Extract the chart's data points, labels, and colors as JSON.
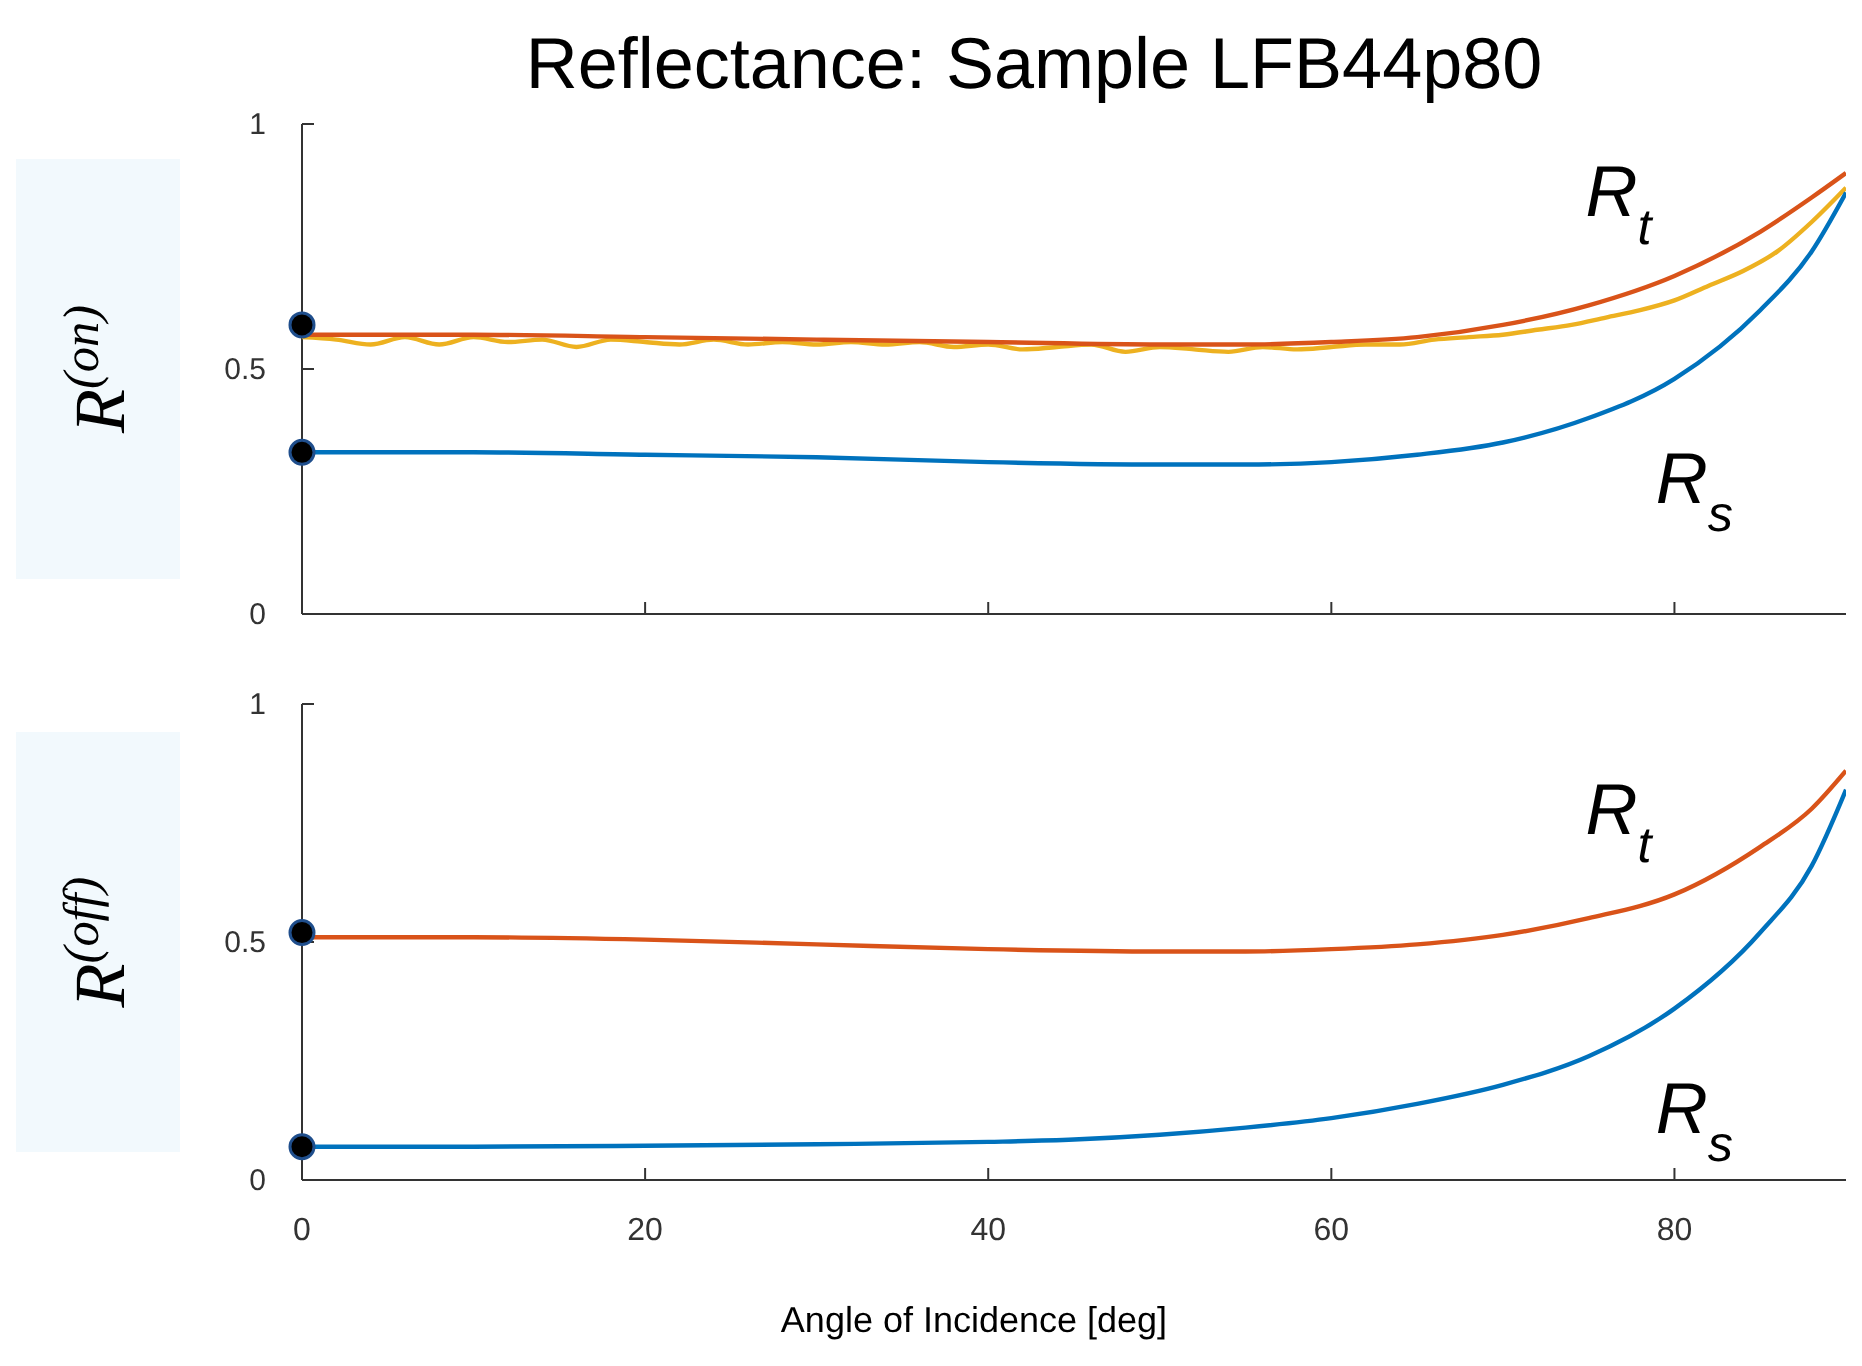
{
  "chart_data": [
    {
      "type": "line",
      "title": "Reflectance: Sample LFB44p80",
      "ylabel": "R$^{(on)}$",
      "xlim": [
        0,
        90
      ],
      "ylim": [
        0,
        1
      ],
      "xticks": [
        0,
        20,
        40,
        60,
        80
      ],
      "yticks": [
        0,
        0.5,
        1
      ],
      "tick_labels": "y",
      "series": [
        {
          "color": "#edb120",
          "x": [
            0,
            2,
            4,
            6,
            8,
            10,
            12,
            14,
            16,
            18,
            20,
            22,
            24,
            26,
            28,
            30,
            32,
            34,
            36,
            38,
            40,
            42,
            44,
            46,
            48,
            50,
            52,
            54,
            56,
            58,
            60,
            62,
            64,
            66,
            68,
            70,
            72,
            74,
            76,
            78,
            80,
            82,
            84,
            86,
            88,
            90
          ],
          "values": [
            0.565,
            0.56,
            0.55,
            0.565,
            0.55,
            0.565,
            0.555,
            0.56,
            0.545,
            0.56,
            0.555,
            0.55,
            0.56,
            0.55,
            0.555,
            0.55,
            0.555,
            0.55,
            0.555,
            0.545,
            0.55,
            0.54,
            0.545,
            0.55,
            0.535,
            0.545,
            0.54,
            0.535,
            0.545,
            0.54,
            0.545,
            0.55,
            0.55,
            0.56,
            0.565,
            0.57,
            0.58,
            0.59,
            0.605,
            0.62,
            0.64,
            0.67,
            0.7,
            0.74,
            0.8,
            0.87
          ]
        },
        {
          "name": "R$_{t}$",
          "color": "#d95319",
          "x": [
            0,
            10,
            20,
            30,
            40,
            50,
            55,
            60,
            65,
            70,
            75,
            80,
            85,
            88,
            90
          ],
          "values": [
            0.57,
            0.57,
            0.565,
            0.56,
            0.555,
            0.55,
            0.55,
            0.555,
            0.565,
            0.59,
            0.63,
            0.69,
            0.78,
            0.85,
            0.9
          ]
        },
        {
          "name": "R$_{s}$",
          "color": "#0072bd",
          "x": [
            0,
            10,
            20,
            30,
            40,
            50,
            55,
            60,
            65,
            70,
            75,
            80,
            85,
            88,
            90
          ],
          "values": [
            0.33,
            0.33,
            0.325,
            0.32,
            0.31,
            0.305,
            0.305,
            0.31,
            0.325,
            0.35,
            0.4,
            0.48,
            0.62,
            0.74,
            0.86
          ]
        },
        {
          "type": "scatter",
          "marker": "circle",
          "color": "#000000",
          "x": [
            0,
            0
          ],
          "values": [
            0.59,
            0.33
          ]
        }
      ]
    },
    {
      "type": "line",
      "ylabel": "R$^{(off)}$",
      "xlabel": "Angle of Incidence [deg]",
      "xlim": [
        0,
        90
      ],
      "ylim": [
        0,
        1
      ],
      "xticks": [
        0,
        20,
        40,
        60,
        80
      ],
      "yticks": [
        0,
        0.5,
        1
      ],
      "series": [
        {
          "name": "R$_{t}$",
          "color": "#d95319",
          "x": [
            0,
            10,
            20,
            30,
            40,
            50,
            55,
            60,
            65,
            70,
            75,
            80,
            85,
            88,
            90
          ],
          "values": [
            0.51,
            0.51,
            0.505,
            0.495,
            0.485,
            0.48,
            0.48,
            0.485,
            0.495,
            0.515,
            0.55,
            0.6,
            0.7,
            0.78,
            0.86
          ]
        },
        {
          "name": "R$_{s}$",
          "color": "#0072bd",
          "x": [
            0,
            10,
            20,
            30,
            40,
            45,
            50,
            55,
            60,
            65,
            70,
            75,
            80,
            85,
            88,
            90
          ],
          "values": [
            0.07,
            0.07,
            0.072,
            0.075,
            0.08,
            0.085,
            0.095,
            0.11,
            0.13,
            0.16,
            0.2,
            0.26,
            0.36,
            0.52,
            0.66,
            0.82
          ]
        },
        {
          "type": "scatter",
          "marker": "circle",
          "color": "#000000",
          "x": [
            0,
            0
          ],
          "values": [
            0.52,
            0.07
          ]
        }
      ]
    }
  ]
}
